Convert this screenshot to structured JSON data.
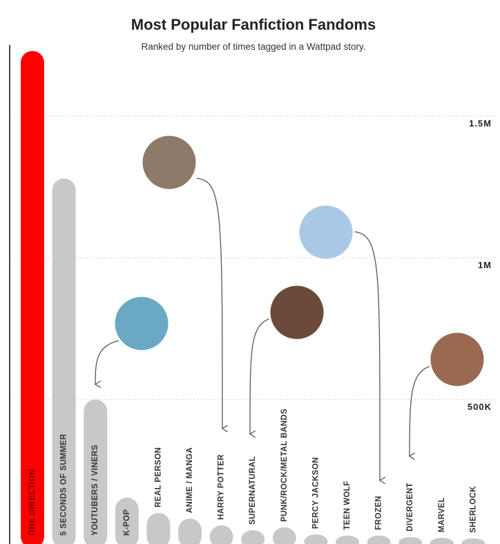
{
  "chart_data": {
    "type": "bar",
    "title": "Most Popular Fanfiction Fandoms",
    "subtitle": "Ranked by number of times tagged in a Wattpad story.",
    "categories": [
      "ONE DIRECTION",
      "5 SECONDS OF SUMMER",
      "YOUTUBERS / VINERS",
      "K-POP",
      "REAL PERSON",
      "ANIME / MANGA",
      "HARRY POTTER",
      "SUPERNATURAL",
      "PUNK/ROCK/METAL BANDS",
      "PERCY JACKSON",
      "TEEN WOLF",
      "FROZEN",
      "DIVERGENT",
      "MARVEL",
      "SHERLOCK"
    ],
    "values": [
      1730000,
      1280000,
      500000,
      154000,
      100000,
      80000,
      56000,
      39000,
      49000,
      24000,
      20000,
      20000,
      15000,
      12000,
      10000
    ],
    "colors": [
      "#ff0000",
      "#c8c8c9",
      "#c8c8c9",
      "#c8c8c9",
      "#c8c8c9",
      "#c8c8c9",
      "#c8c8c9",
      "#c8c8c9",
      "#c8c8c9",
      "#c8c8c9",
      "#c8c8c9",
      "#c8c8c9",
      "#c8c8c9",
      "#c8c8c9",
      "#c8c8c9"
    ],
    "ylim": [
      0,
      1800000
    ],
    "yticks": [
      {
        "value": 500000,
        "label": "500K"
      },
      {
        "value": 1000000,
        "label": "1M"
      },
      {
        "value": 1500000,
        "label": "1.5M"
      }
    ],
    "grid": true
  }
}
